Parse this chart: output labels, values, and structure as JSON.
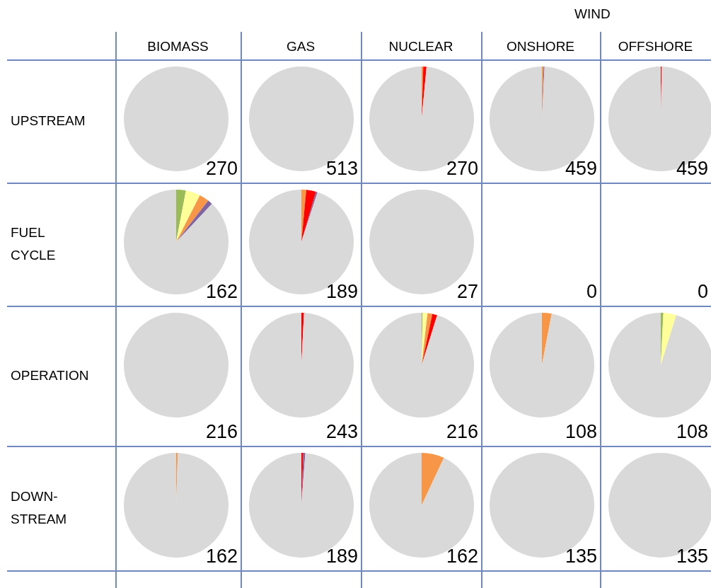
{
  "chart_data": [
    {
      "type": "other",
      "annotations": [
        "WIND",
        "BIOMASS",
        "GAS",
        "NUCLEAR",
        "ONSHORE",
        "OFFSHORE",
        "UPSTREAM",
        "FUEL\nCYCLE",
        "OPERATION",
        "DOWN-\nSTREAM"
      ]
    },
    {
      "type": "pie",
      "categories": [
        null
      ],
      "values": [
        100
      ],
      "colors": [
        "#d9d9d9"
      ],
      "annotations": [
        "270"
      ]
    },
    {
      "type": "pie",
      "categories": [
        null
      ],
      "values": [
        100
      ],
      "colors": [
        "#d9d9d9"
      ],
      "annotations": [
        "513"
      ]
    },
    {
      "type": "pie",
      "categories": [
        null,
        null,
        null
      ],
      "values": [
        0.5,
        1,
        98.5
      ],
      "colors": [
        "#f79646",
        "#ff0000",
        "#d9d9d9"
      ],
      "annotations": [
        "270"
      ]
    },
    {
      "type": "pie",
      "categories": [
        null,
        null,
        null
      ],
      "values": [
        0.5,
        0.3,
        99.2
      ],
      "colors": [
        "#f79646",
        "#8064a2",
        "#d9d9d9"
      ],
      "annotations": [
        "459"
      ]
    },
    {
      "type": "pie",
      "categories": [
        null,
        null
      ],
      "values": [
        0.3,
        99.7
      ],
      "colors": [
        "#ff0000",
        "#d9d9d9"
      ],
      "annotations": [
        "459"
      ]
    },
    {
      "type": "pie",
      "categories": [
        null,
        null,
        null,
        null,
        null
      ],
      "values": [
        3,
        4.5,
        3,
        1.5,
        88
      ],
      "colors": [
        "#9bbb59",
        "#ffff99",
        "#f79646",
        "#8064a2",
        "#d9d9d9"
      ],
      "annotations": [
        "162"
      ]
    },
    {
      "type": "pie",
      "categories": [
        null,
        null,
        null,
        null
      ],
      "values": [
        1.5,
        3,
        0.5,
        95
      ],
      "colors": [
        "#f79646",
        "#ff0000",
        "#8064a2",
        "#d9d9d9"
      ],
      "annotations": [
        "189"
      ]
    },
    {
      "type": "pie",
      "categories": [
        null
      ],
      "values": [
        100
      ],
      "colors": [
        "#d9d9d9"
      ],
      "annotations": [
        "27"
      ]
    },
    {
      "type": "other",
      "annotations": [
        "0"
      ]
    },
    {
      "type": "other",
      "annotations": [
        "0"
      ]
    },
    {
      "type": "pie",
      "categories": [
        null
      ],
      "values": [
        100
      ],
      "colors": [
        "#d9d9d9"
      ],
      "annotations": [
        "216"
      ]
    },
    {
      "type": "pie",
      "categories": [
        null,
        null
      ],
      "values": [
        0.8,
        99.2
      ],
      "colors": [
        "#ff0000",
        "#d9d9d9"
      ],
      "annotations": [
        "243"
      ]
    },
    {
      "type": "pie",
      "categories": [
        null,
        null,
        null,
        null,
        null
      ],
      "values": [
        0.3,
        1.5,
        1.5,
        1.5,
        95.2
      ],
      "colors": [
        "#9bbb59",
        "#ffff99",
        "#f79646",
        "#ff0000",
        "#d9d9d9"
      ],
      "annotations": [
        "216"
      ]
    },
    {
      "type": "pie",
      "categories": [
        null,
        null
      ],
      "values": [
        3,
        97
      ],
      "colors": [
        "#f79646",
        "#d9d9d9"
      ],
      "annotations": [
        "108"
      ]
    },
    {
      "type": "pie",
      "categories": [
        null,
        null,
        null
      ],
      "values": [
        0.8,
        4,
        95.2
      ],
      "colors": [
        "#9bbb59",
        "#ffff99",
        "#d9d9d9"
      ],
      "annotations": [
        "108"
      ]
    },
    {
      "type": "pie",
      "categories": [
        null,
        null
      ],
      "values": [
        0.5,
        99.5
      ],
      "colors": [
        "#f79646",
        "#d9d9d9"
      ],
      "annotations": [
        "162"
      ]
    },
    {
      "type": "pie",
      "categories": [
        null,
        null,
        null
      ],
      "values": [
        0.6,
        0.6,
        98.8
      ],
      "colors": [
        "#ff0000",
        "#8064a2",
        "#d9d9d9"
      ],
      "annotations": [
        "189"
      ]
    },
    {
      "type": "pie",
      "categories": [
        null,
        null
      ],
      "values": [
        7,
        93
      ],
      "colors": [
        "#f79646",
        "#d9d9d9"
      ],
      "annotations": [
        "162"
      ]
    },
    {
      "type": "pie",
      "categories": [
        null
      ],
      "values": [
        100
      ],
      "colors": [
        "#d9d9d9"
      ],
      "annotations": [
        "135"
      ]
    },
    {
      "type": "pie",
      "categories": [
        null
      ],
      "values": [
        100
      ],
      "colors": [
        "#d9d9d9"
      ],
      "annotations": [
        "135"
      ]
    }
  ]
}
